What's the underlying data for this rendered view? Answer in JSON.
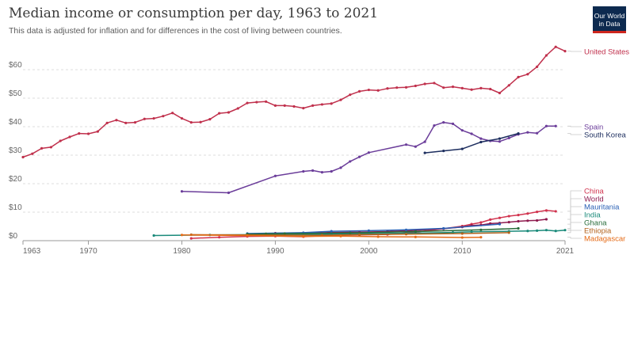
{
  "header": {
    "title": "Median income or consumption per day, 1963 to 2021",
    "subtitle": "This data is adjusted for inflation and for differences in the cost of living between countries."
  },
  "logo": {
    "line1": "Our World",
    "line2": "in Data"
  },
  "chart_data": {
    "type": "line",
    "title": "Median income or consumption per day, 1963 to 2021",
    "xlim": [
      1963,
      2021
    ],
    "ylim": [
      0,
      70
    ],
    "x_ticks": [
      {
        "value": 1963,
        "label": "1963"
      },
      {
        "value": 1970,
        "label": "1970"
      },
      {
        "value": 1980,
        "label": "1980"
      },
      {
        "value": 1990,
        "label": "1990"
      },
      {
        "value": 2000,
        "label": "2000"
      },
      {
        "value": 2010,
        "label": "2010"
      },
      {
        "value": 2021,
        "label": "2021"
      }
    ],
    "y_ticks": [
      {
        "value": 0,
        "label": "$0"
      },
      {
        "value": 10,
        "label": "$10"
      },
      {
        "value": 20,
        "label": "$20"
      },
      {
        "value": 30,
        "label": "$30"
      },
      {
        "value": 40,
        "label": "$40"
      },
      {
        "value": 50,
        "label": "$50"
      },
      {
        "value": 60,
        "label": "$60"
      }
    ],
    "series": [
      {
        "name": "United States",
        "color": "#c0304c",
        "label_value": 66.5,
        "points": [
          [
            1963,
            29.3
          ],
          [
            1964,
            30.5
          ],
          [
            1965,
            32.4
          ],
          [
            1966,
            32.8
          ],
          [
            1967,
            35
          ],
          [
            1968,
            36.4
          ],
          [
            1969,
            37.6
          ],
          [
            1970,
            37.5
          ],
          [
            1971,
            38.3
          ],
          [
            1972,
            41.3
          ],
          [
            1973,
            42.3
          ],
          [
            1974,
            41.3
          ],
          [
            1975,
            41.5
          ],
          [
            1976,
            42.7
          ],
          [
            1977,
            42.9
          ],
          [
            1978,
            43.7
          ],
          [
            1979,
            44.8
          ],
          [
            1980,
            42.9
          ],
          [
            1981,
            41.5
          ],
          [
            1982,
            41.6
          ],
          [
            1983,
            42.6
          ],
          [
            1984,
            44.7
          ],
          [
            1985,
            45
          ],
          [
            1986,
            46.4
          ],
          [
            1987,
            48.3
          ],
          [
            1988,
            48.6
          ],
          [
            1989,
            48.8
          ],
          [
            1990,
            47.4
          ],
          [
            1991,
            47.4
          ],
          [
            1992,
            47.1
          ],
          [
            1993,
            46.5
          ],
          [
            1994,
            47.4
          ],
          [
            1995,
            47.8
          ],
          [
            1996,
            48.1
          ],
          [
            1997,
            49.4
          ],
          [
            1998,
            51.2
          ],
          [
            1999,
            52.4
          ],
          [
            2000,
            52.9
          ],
          [
            2001,
            52.7
          ],
          [
            2002,
            53.4
          ],
          [
            2003,
            53.7
          ],
          [
            2004,
            53.8
          ],
          [
            2005,
            54.3
          ],
          [
            2006,
            55
          ],
          [
            2007,
            55.3
          ],
          [
            2008,
            53.7
          ],
          [
            2009,
            54
          ],
          [
            2010,
            53.5
          ],
          [
            2011,
            53
          ],
          [
            2012,
            53.5
          ],
          [
            2013,
            53.2
          ],
          [
            2014,
            51.8
          ],
          [
            2015,
            54.5
          ],
          [
            2016,
            57.4
          ],
          [
            2017,
            58.4
          ],
          [
            2018,
            61
          ],
          [
            2019,
            65
          ],
          [
            2020,
            68
          ],
          [
            2021,
            66.5
          ]
        ]
      },
      {
        "name": "Spain",
        "color": "#6b3d9a",
        "label_value": 40.2,
        "points": [
          [
            1980,
            17.3
          ],
          [
            1985,
            16.8
          ],
          [
            1990,
            22.7
          ],
          [
            1993,
            24.3
          ],
          [
            1994,
            24.6
          ],
          [
            1995,
            24
          ],
          [
            1996,
            24.3
          ],
          [
            1997,
            25.6
          ],
          [
            1998,
            27.8
          ],
          [
            1999,
            29.4
          ],
          [
            2000,
            30.9
          ],
          [
            2004,
            33.7
          ],
          [
            2005,
            33
          ],
          [
            2006,
            34.7
          ],
          [
            2007,
            40.4
          ],
          [
            2008,
            41.5
          ],
          [
            2009,
            41
          ],
          [
            2010,
            38.7
          ],
          [
            2011,
            37.5
          ],
          [
            2012,
            35.8
          ],
          [
            2013,
            35
          ],
          [
            2014,
            34.8
          ],
          [
            2015,
            36
          ],
          [
            2016,
            37.3
          ],
          [
            2017,
            38
          ],
          [
            2018,
            37.7
          ],
          [
            2019,
            40.2
          ],
          [
            2020,
            40.2
          ]
        ]
      },
      {
        "name": "South Korea",
        "color": "#1c2d5e",
        "label_value": 37.6,
        "points": [
          [
            2006,
            30.8
          ],
          [
            2008,
            31.5
          ],
          [
            2010,
            32.2
          ],
          [
            2012,
            34.6
          ],
          [
            2014,
            35.8
          ],
          [
            2016,
            37.6
          ]
        ]
      },
      {
        "name": "China",
        "color": "#d1334e",
        "label_value": 10.3,
        "points": [
          [
            1981,
            0.8
          ],
          [
            1984,
            1.2
          ],
          [
            1987,
            1.5
          ],
          [
            1990,
            1.6
          ],
          [
            1993,
            1.4
          ],
          [
            1996,
            1.9
          ],
          [
            1999,
            2
          ],
          [
            2002,
            2.2
          ],
          [
            2005,
            3
          ],
          [
            2008,
            4.2
          ],
          [
            2010,
            5.1
          ],
          [
            2011,
            5.8
          ],
          [
            2012,
            6.4
          ],
          [
            2013,
            7.4
          ],
          [
            2014,
            8
          ],
          [
            2015,
            8.6
          ],
          [
            2016,
            9
          ],
          [
            2017,
            9.5
          ],
          [
            2018,
            10.1
          ],
          [
            2019,
            10.6
          ],
          [
            2020,
            10.3
          ]
        ]
      },
      {
        "name": "World",
        "color": "#8e1b4e",
        "label_value": 7.5,
        "points": [
          [
            1990,
            2.6
          ],
          [
            1993,
            2.6
          ],
          [
            1996,
            2.9
          ],
          [
            1999,
            3
          ],
          [
            2002,
            3.2
          ],
          [
            2005,
            3.6
          ],
          [
            2008,
            4.2
          ],
          [
            2010,
            4.8
          ],
          [
            2011,
            5.3
          ],
          [
            2012,
            5.5
          ],
          [
            2013,
            6
          ],
          [
            2014,
            6.2
          ],
          [
            2015,
            6.5
          ],
          [
            2016,
            6.8
          ],
          [
            2017,
            7
          ],
          [
            2018,
            7.1
          ],
          [
            2019,
            7.5
          ]
        ]
      },
      {
        "name": "Mauritania",
        "color": "#2b61b5",
        "label_value": 5.8,
        "points": [
          [
            1987,
            2.5
          ],
          [
            1993,
            2.8
          ],
          [
            1996,
            3.3
          ],
          [
            2000,
            3.5
          ],
          [
            2004,
            3.8
          ],
          [
            2008,
            4.3
          ],
          [
            2014,
            5.8
          ]
        ]
      },
      {
        "name": "India",
        "color": "#1a8a7a",
        "label_value": 3.7,
        "points": [
          [
            1977,
            1.8
          ],
          [
            1983,
            2
          ],
          [
            1987,
            2.1
          ],
          [
            1993,
            2.2
          ],
          [
            2004,
            2.6
          ],
          [
            2009,
            2.9
          ],
          [
            2011,
            3.1
          ],
          [
            2015,
            3.3
          ],
          [
            2017,
            3.4
          ],
          [
            2018,
            3.5
          ],
          [
            2019,
            3.7
          ],
          [
            2020,
            3.4
          ],
          [
            2021,
            3.7
          ]
        ]
      },
      {
        "name": "Ghana",
        "color": "#286c3a",
        "label_value": 4.3,
        "points": [
          [
            1987,
            2.3
          ],
          [
            1989,
            2.4
          ],
          [
            1991,
            2.5
          ],
          [
            1998,
            2.7
          ],
          [
            2005,
            3.2
          ],
          [
            2012,
            3.8
          ],
          [
            2016,
            4.3
          ]
        ]
      },
      {
        "name": "Ethiopia",
        "color": "#b3631e",
        "label_value": 2.8,
        "points": [
          [
            1981,
            2.1
          ],
          [
            1995,
            1.9
          ],
          [
            1999,
            2.1
          ],
          [
            2004,
            2.3
          ],
          [
            2010,
            2.5
          ],
          [
            2015,
            2.8
          ]
        ]
      },
      {
        "name": "Madagascar",
        "color": "#e56b17",
        "label_value": 1.2,
        "points": [
          [
            1980,
            2
          ],
          [
            1987,
            1.8
          ],
          [
            1993,
            1.5
          ],
          [
            1997,
            1.6
          ],
          [
            2001,
            1.4
          ],
          [
            2005,
            1.3
          ],
          [
            2010,
            1.1
          ],
          [
            2012,
            1.2
          ]
        ]
      }
    ]
  }
}
